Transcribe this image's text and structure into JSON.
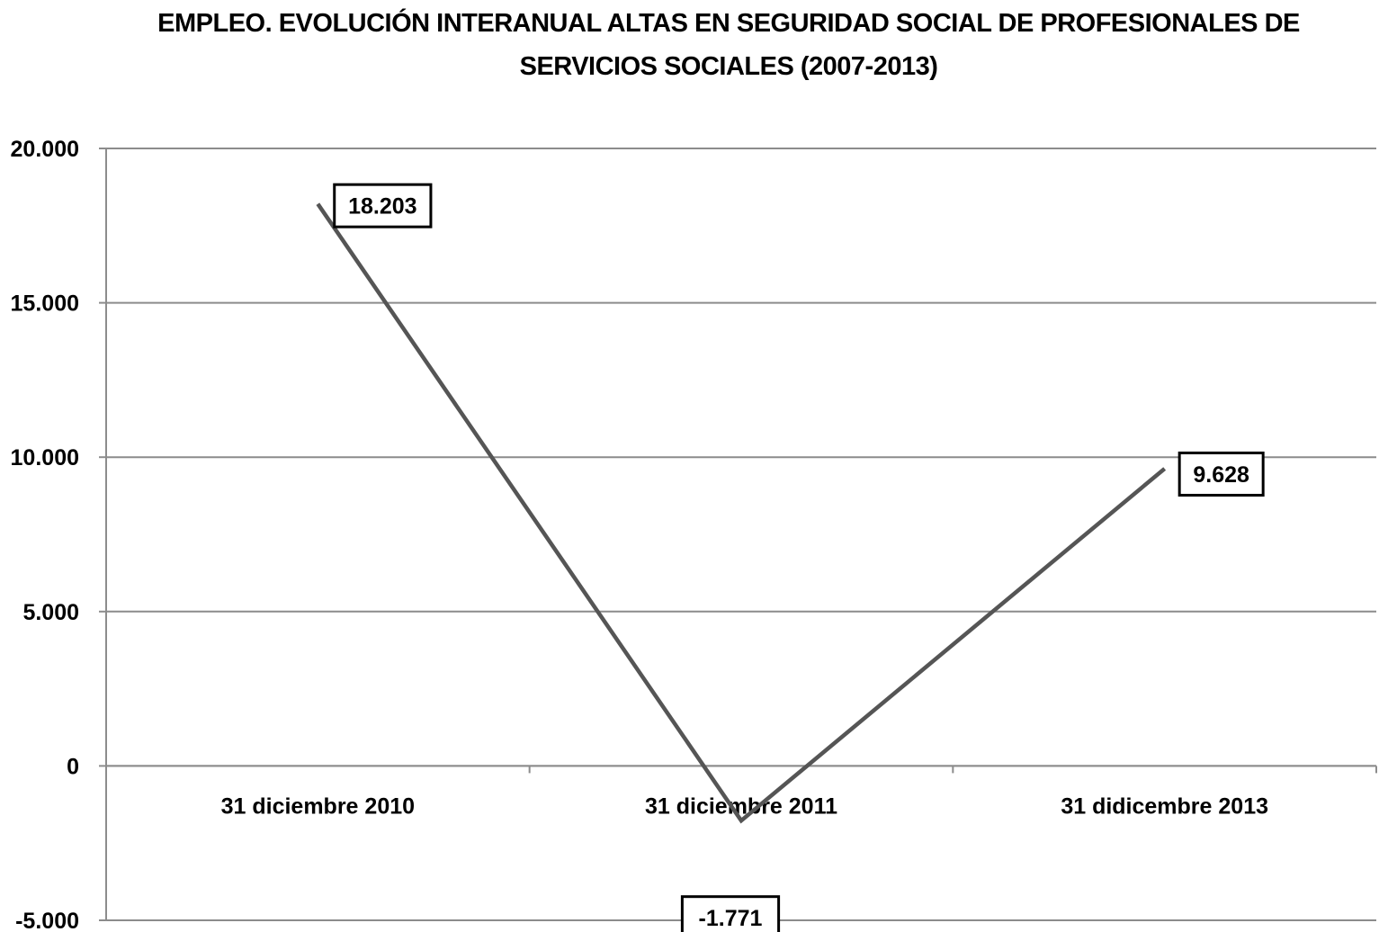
{
  "chart_data": {
    "type": "line",
    "title": "EMPLEO. EVOLUCIÓN INTERANUAL ALTAS EN SEGURIDAD SOCIAL DE PROFESIONALES DE SERVICIOS SOCIALES (2007-2013)",
    "title_lines": [
      "EMPLEO. EVOLUCIÓN INTERANUAL ALTAS EN SEGURIDAD SOCIAL DE PROFESIONALES DE",
      "SERVICIOS SOCIALES (2007-2013)"
    ],
    "categories": [
      "31 diciembre 2010",
      "31 diciembre 2011",
      "31 didicembre 2013"
    ],
    "series": [
      {
        "values": [
          18203,
          -1771,
          9628
        ],
        "color": "#555555"
      }
    ],
    "data_labels": [
      "18.203",
      "-1.771",
      "9.628"
    ],
    "y_ticks": [
      {
        "value": 20000,
        "label": "20.000"
      },
      {
        "value": 15000,
        "label": "15.000"
      },
      {
        "value": 10000,
        "label": "10.000"
      },
      {
        "value": 5000,
        "label": "5.000"
      },
      {
        "value": 0,
        "label": "0"
      },
      {
        "value": -5000,
        "label": "-5.000"
      }
    ],
    "ylim": [
      -5000,
      20000
    ],
    "grid": true,
    "xlabel": "",
    "ylabel": ""
  }
}
